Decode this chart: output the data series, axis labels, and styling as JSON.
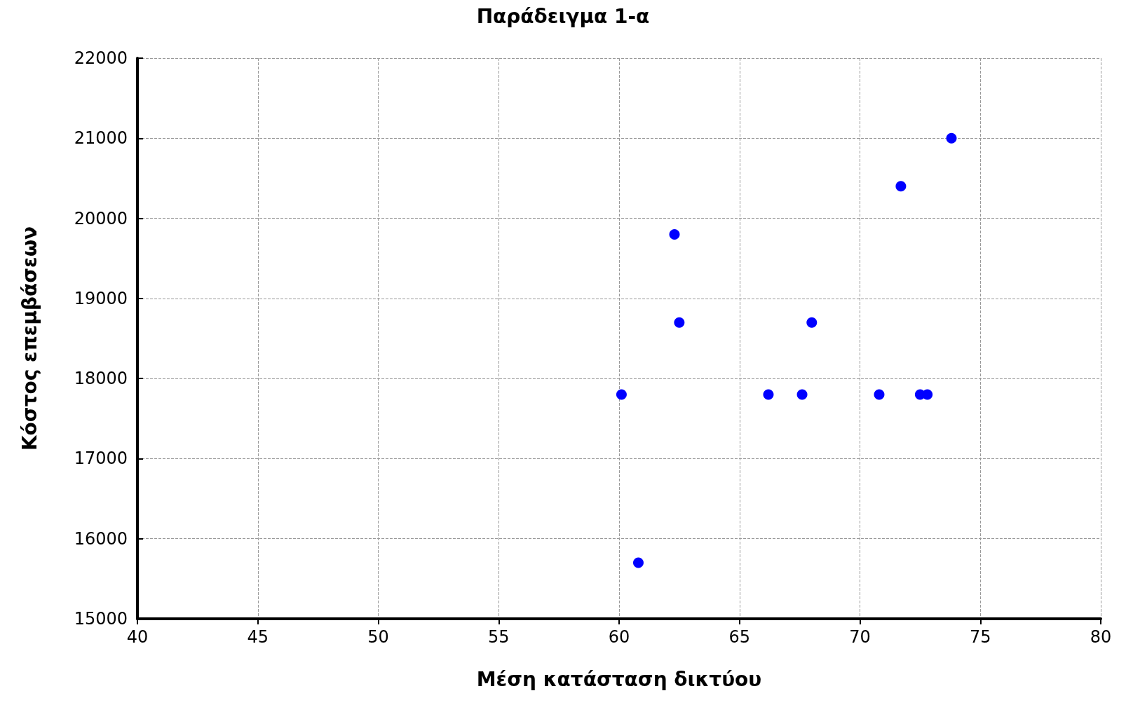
{
  "chart_data": {
    "type": "scatter",
    "title": "Παράδειγμα 1-α",
    "xlabel": "Μέση κατάσταση δικτύου",
    "ylabel": "Κόστος επεμβάσεων",
    "x": [
      60.1,
      60.8,
      62.3,
      62.5,
      66.2,
      67.6,
      68.0,
      70.8,
      71.7,
      72.5,
      72.8,
      73.8
    ],
    "series": [
      {
        "color": "#0000ff",
        "values": [
          17800,
          15700,
          19800,
          18700,
          17800,
          17800,
          18700,
          17800,
          20400,
          17800,
          17800,
          21000
        ]
      }
    ],
    "xlim": [
      40,
      80
    ],
    "xticks": [
      40,
      45,
      50,
      55,
      60,
      65,
      70,
      75,
      80
    ],
    "ylim": [
      15000,
      22000
    ],
    "yticks": [
      15000,
      16000,
      17000,
      18000,
      19000,
      20000,
      21000,
      22000
    ],
    "grid": true,
    "marker": "circle"
  }
}
